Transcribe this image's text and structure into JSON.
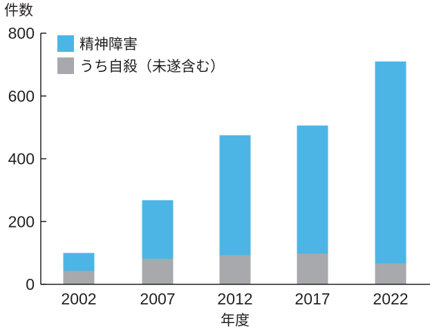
{
  "chart_data": {
    "type": "bar",
    "stacked": false,
    "title": "",
    "ylabel": "件数",
    "xlabel": "年度",
    "categories": [
      "2002",
      "2007",
      "2012",
      "2017",
      "2022"
    ],
    "series": [
      {
        "name": "精神障害",
        "values": [
          100,
          268,
          475,
          506,
          710
        ],
        "color": "#4db5e6"
      },
      {
        "name": "うち自殺（未遂含む）",
        "values": [
          43,
          81,
          93,
          98,
          67
        ],
        "color": "#a7a9ac"
      }
    ],
    "ylim": [
      0,
      800
    ],
    "yticks": [
      "0",
      "200",
      "400",
      "600",
      "800"
    ],
    "grid": false,
    "legend_position": "top-left"
  }
}
